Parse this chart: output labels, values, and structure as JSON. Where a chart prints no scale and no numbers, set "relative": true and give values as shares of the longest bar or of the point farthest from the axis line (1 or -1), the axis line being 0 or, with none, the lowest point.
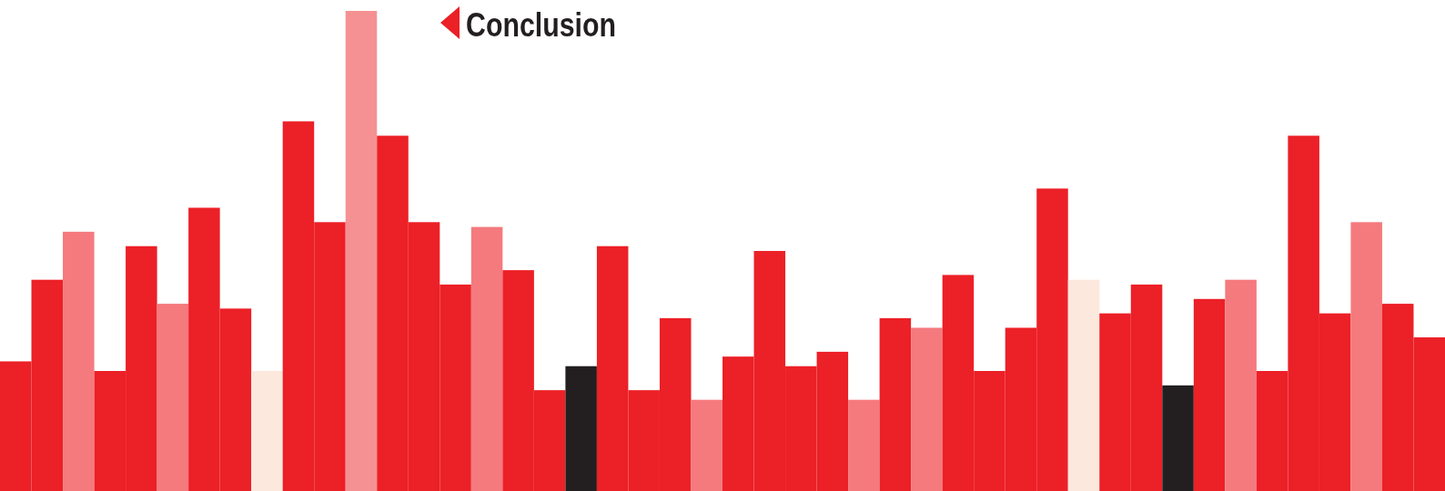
{
  "chart_data": {
    "type": "bar",
    "title": "Conclusion",
    "relative": true,
    "categories": [
      null,
      null,
      null,
      null,
      null,
      null,
      null,
      null,
      null,
      null,
      null,
      null,
      null,
      null,
      null,
      null,
      null,
      null,
      null,
      null,
      null,
      null,
      null,
      null,
      null,
      null,
      null,
      null,
      null,
      null,
      null,
      null,
      null,
      null,
      null,
      null,
      null,
      null,
      null,
      null,
      null,
      null,
      null,
      null,
      null,
      null
    ],
    "values": [
      0.27,
      0.44,
      0.54,
      0.25,
      0.51,
      0.39,
      0.59,
      0.38,
      0.25,
      0.77,
      0.56,
      1,
      0.74,
      0.56,
      0.43,
      0.55,
      0.46,
      0.21,
      0.26,
      0.51,
      0.21,
      0.36,
      0.19,
      0.28,
      0.5,
      0.26,
      0.29,
      0.19,
      0.36,
      0.34,
      0.45,
      0.25,
      0.34,
      0.63,
      0.44,
      0.37,
      0.43,
      0.22,
      0.4,
      0.44,
      0.25,
      0.74,
      0.37,
      0.56,
      0.39,
      0.32
    ],
    "colors": [
      "#ec2027",
      "#ec2027",
      "#f47a7e",
      "#ec2027",
      "#ec2027",
      "#f47a7e",
      "#ec2027",
      "#ec2027",
      "#fde8de",
      "#ec2027",
      "#ec2027",
      "#f59193",
      "#ec2027",
      "#ec2027",
      "#ec2027",
      "#f47a7e",
      "#ec2027",
      "#ec2027",
      "#231f20",
      "#ec2027",
      "#ec2027",
      "#ec2027",
      "#f47a7e",
      "#ec2027",
      "#ec2027",
      "#ec2027",
      "#ec2027",
      "#f47a7e",
      "#ec2027",
      "#f47a7e",
      "#ec2027",
      "#ec2027",
      "#ec2027",
      "#ec2027",
      "#fde8de",
      "#ec2027",
      "#ec2027",
      "#231f20",
      "#ec2027",
      "#f47a7e",
      "#ec2027",
      "#ec2027",
      "#ec2027",
      "#f47a7e",
      "#ec2027",
      "#ec2027"
    ]
  }
}
